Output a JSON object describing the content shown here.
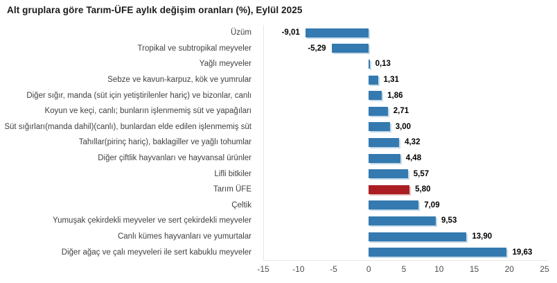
{
  "title": "Alt gruplara göre Tarım-ÜFE aylık değişim oranları (%), Eylül 2025",
  "chart_data": {
    "type": "bar",
    "orientation": "horizontal",
    "title": "Alt gruplara göre Tarım-ÜFE aylık değişim oranları (%), Eylül 2025",
    "categories": [
      "Üzüm",
      "Tropikal ve subtropikal meyveler",
      "Yağlı meyveler",
      "Sebze ve kavun-karpuz, kök ve yumrular",
      "Diğer sığır, manda (süt için yetiştirilenler hariç) ve bizonlar, canlı",
      "Koyun ve keçi, canlı; bunların işlenmemiş süt ve yapağıları",
      "Süt sığırları(manda dahil)(canlı), bunlardan elde edilen işlenmemiş süt",
      "Tahıllar(pirinç hariç), baklagiller ve yağlı tohumlar",
      "Diğer çiftlik hayvanları ve hayvansal ürünler",
      "Lifli bitkiler",
      "Tarım ÜFE",
      "Çeltik",
      "Yumuşak çekirdekli meyveler ve sert çekirdekli meyveler",
      "Canlı kümes hayvanları ve yumurtalar",
      "Diğer ağaç ve çalı meyveleri ile sert kabuklu meyveler"
    ],
    "values": [
      -9.01,
      -5.29,
      0.13,
      1.31,
      1.86,
      2.71,
      3.0,
      4.32,
      4.48,
      5.57,
      5.8,
      7.09,
      9.53,
      13.9,
      19.63
    ],
    "value_labels": [
      "-9,01",
      "-5,29",
      "0,13",
      "1,31",
      "1,86",
      "2,71",
      "3,00",
      "4,32",
      "4,48",
      "5,57",
      "5,80",
      "7,09",
      "9,53",
      "13,90",
      "19,63"
    ],
    "highlight_category": "Tarım ÜFE",
    "highlight_index": 10,
    "colors": {
      "bar": "#347AB0",
      "highlight": "#AA1E23"
    },
    "xlim": [
      -15,
      25
    ],
    "ticks": [
      -15,
      -10,
      -5,
      0,
      5,
      10,
      15,
      20,
      25
    ],
    "xlabel": "",
    "ylabel": "",
    "grid": false,
    "legend": false
  }
}
